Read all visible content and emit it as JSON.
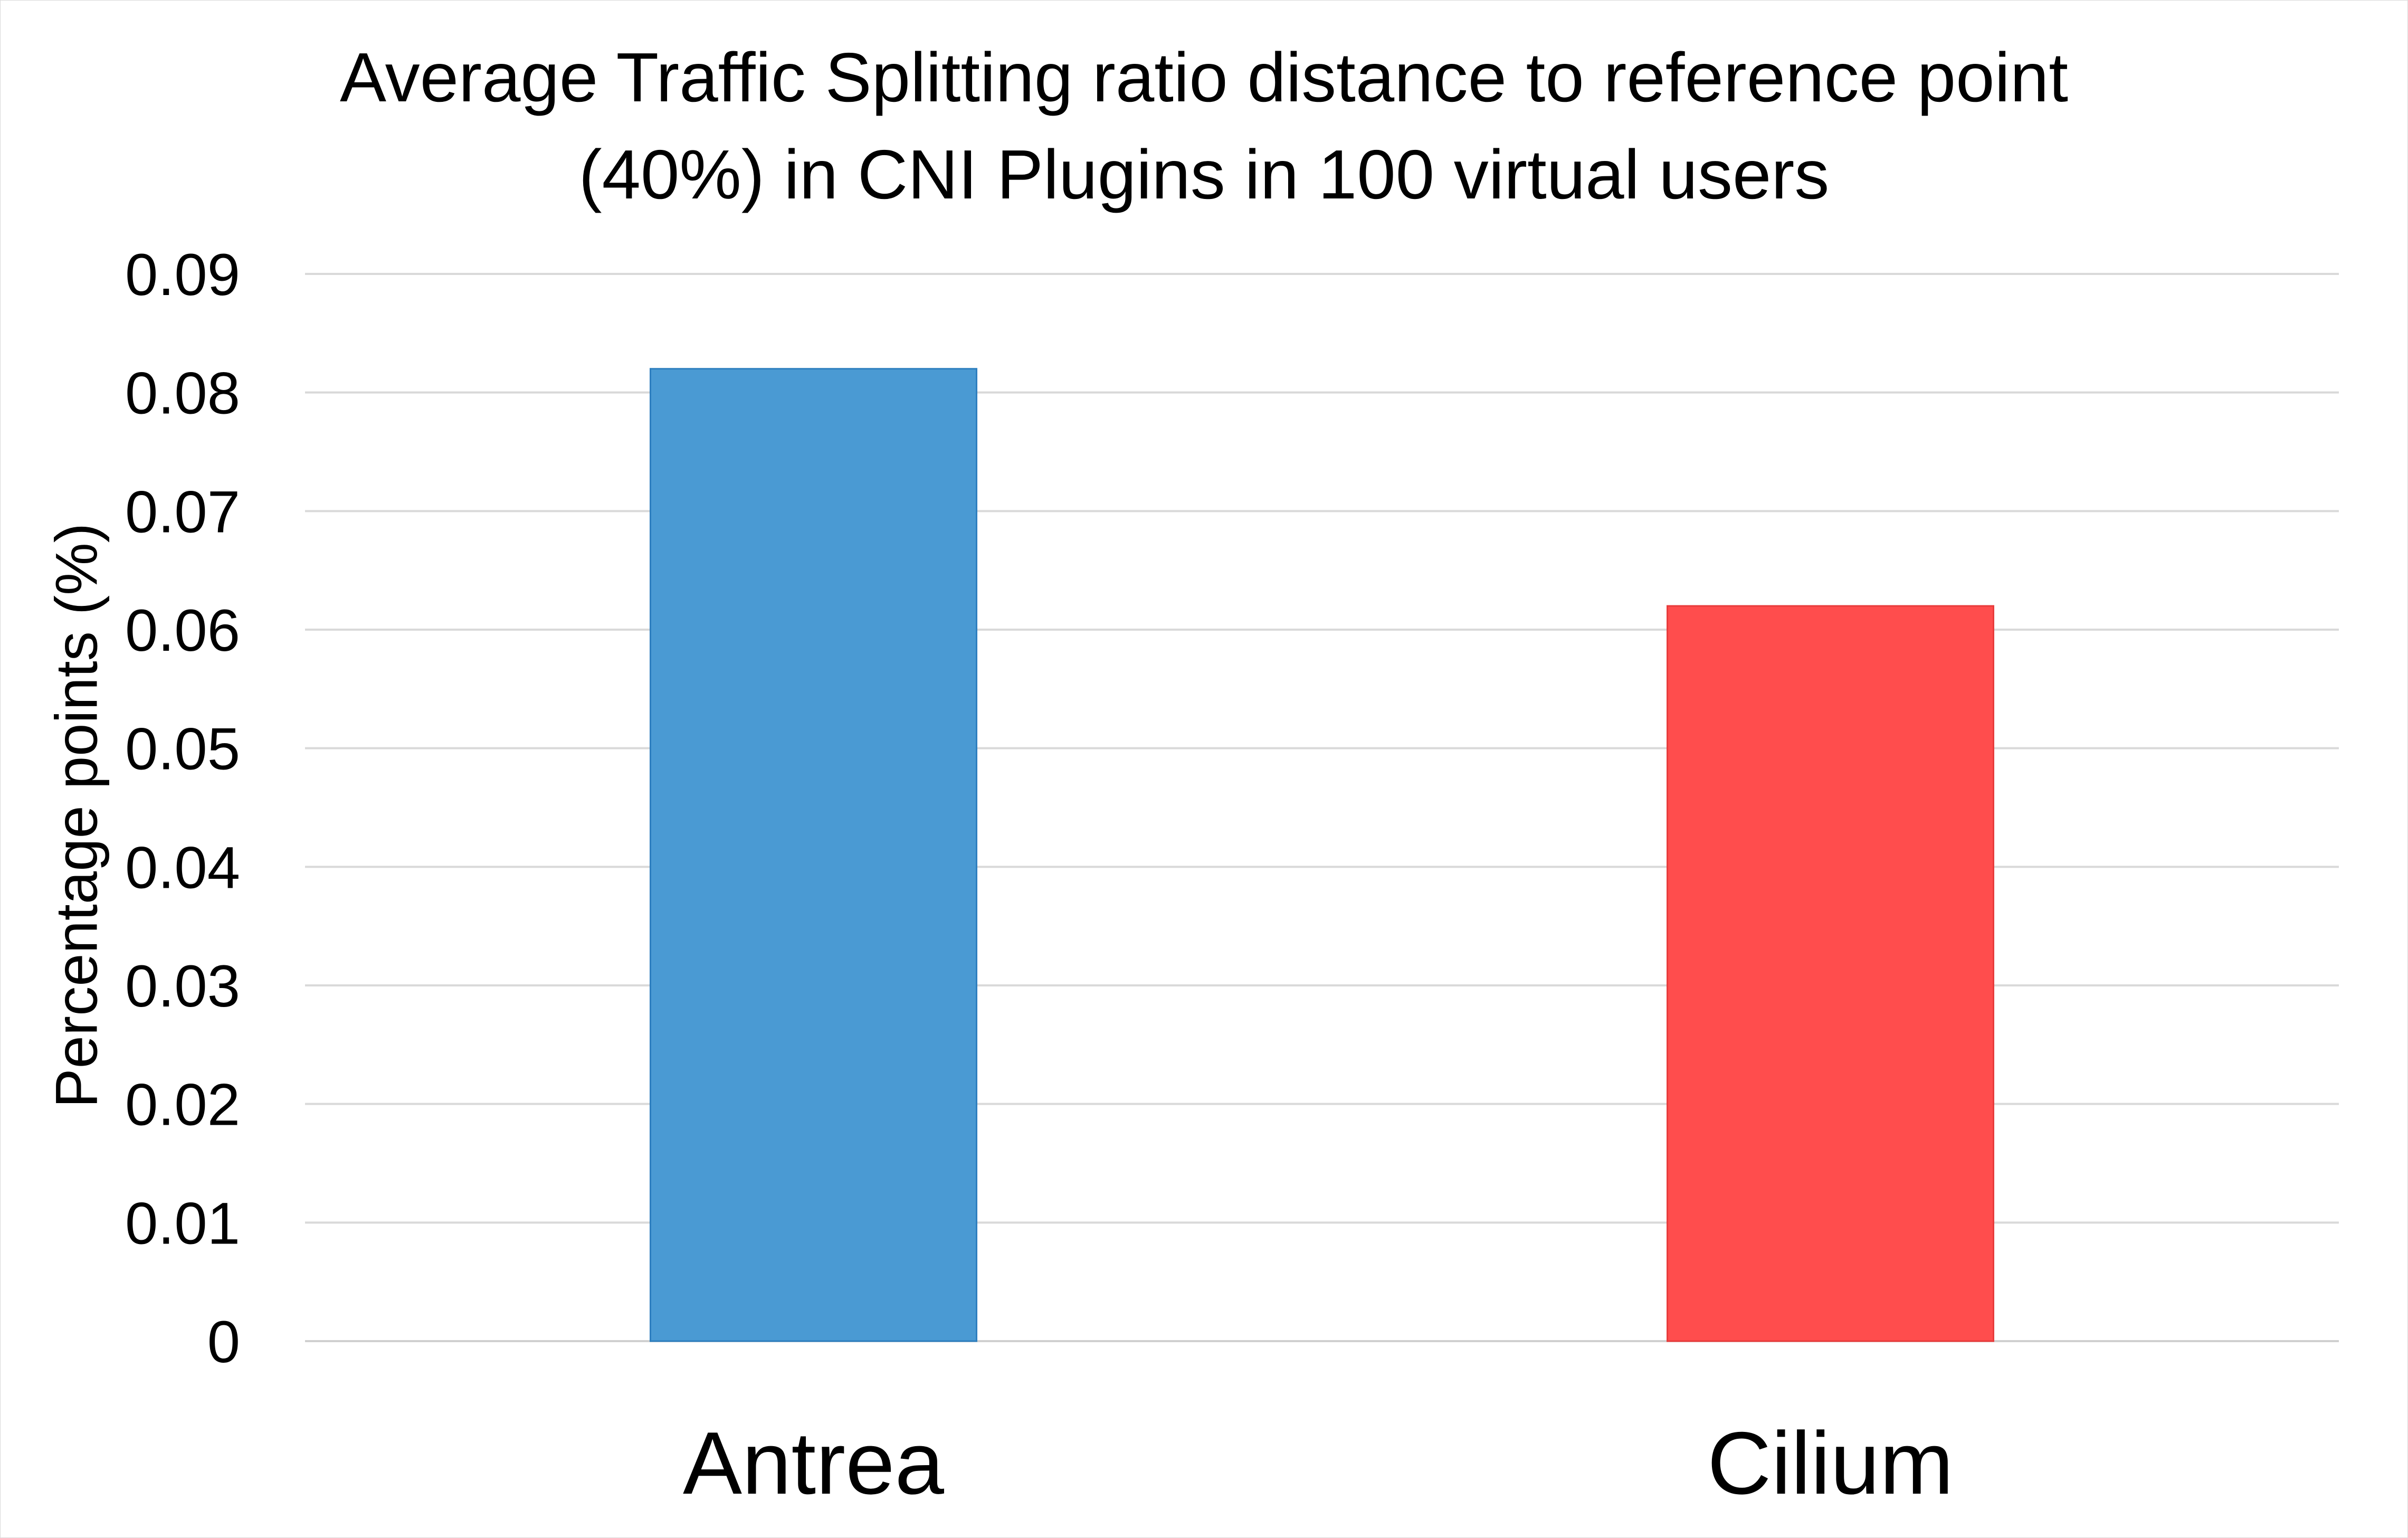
{
  "chart_data": {
    "type": "bar",
    "title_lines": [
      "Average Traffic Splitting ratio distance to reference point",
      "(40%) in CNI Plugins in 100 virtual users"
    ],
    "xlabel": "",
    "ylabel": "Percentage points (%)",
    "categories": [
      "Antrea",
      "Cilium"
    ],
    "values": [
      0.082,
      0.062
    ],
    "bar_colors": [
      "#4a9ad3",
      "#ff4d4d"
    ],
    "bar_border_colors": [
      "#2e7fbf",
      "#e83c3c"
    ],
    "ylim": [
      0,
      0.09
    ],
    "yticks": [
      "0",
      "0.01",
      "0.02",
      "0.03",
      "0.04",
      "0.05",
      "0.06",
      "0.07",
      "0.08",
      "0.09"
    ],
    "grid": true,
    "legend": "none"
  }
}
